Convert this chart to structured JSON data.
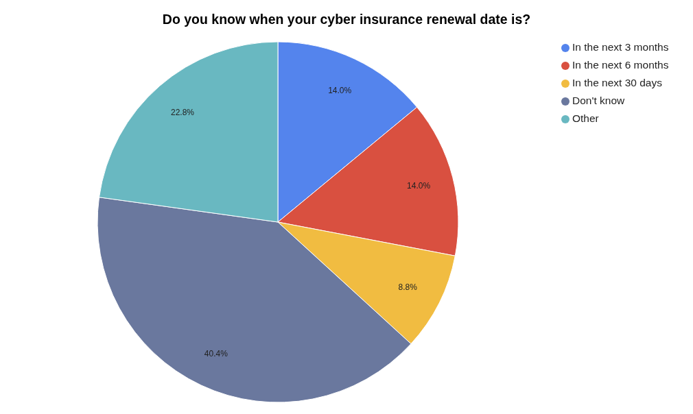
{
  "chart_data": {
    "type": "pie",
    "title": "Do you know when your cyber insurance renewal date is?",
    "categories": [
      "In the next 3 months",
      "In the next 6 months",
      "In the next 30 days",
      "Don't know",
      "Other"
    ],
    "values": [
      14.0,
      14.0,
      8.8,
      40.4,
      22.8
    ],
    "colors": [
      "#5484ed",
      "#d95040",
      "#f1bc41",
      "#6a789e",
      "#69b8c1"
    ],
    "value_labels": [
      "14.0%",
      "14.0%",
      "8.8%",
      "40.4%",
      "22.8%"
    ],
    "legend": "top right"
  }
}
